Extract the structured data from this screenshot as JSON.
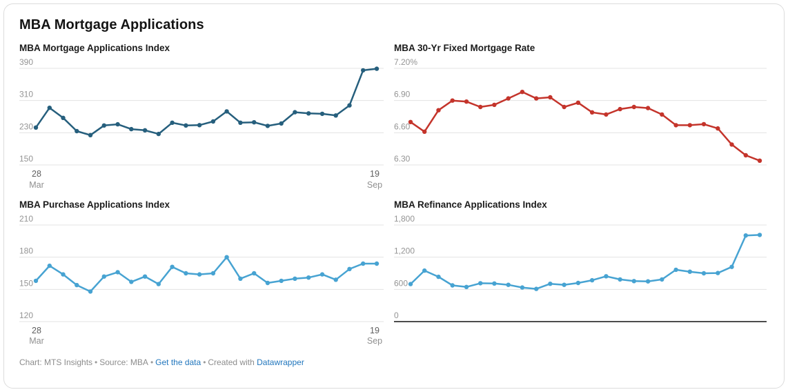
{
  "title": "MBA Mortgage Applications",
  "colors": {
    "dark_blue": "#265f7d",
    "red": "#c4342b",
    "light_blue": "#47a3d2",
    "gridline": "#e3e3e3",
    "dark_axis": "#111111",
    "tick_label": "#949494",
    "footer_text": "#8c8c8c",
    "link": "#2176bd",
    "card_border": "#dcdcdc"
  },
  "footer": {
    "chart_credit": "Chart: MTS Insights",
    "separator": "•",
    "source": "Source: MBA",
    "get_data_link": "Get the data",
    "created_with": "Created with",
    "datawrapper_link": "Datawrapper"
  },
  "chart_data": [
    {
      "type": "line",
      "title": "MBA Mortgage Applications Index",
      "color": "#265f7d",
      "ylim": [
        150,
        390
      ],
      "yticks": [
        {
          "value": 390,
          "label": "390"
        },
        {
          "value": 310,
          "label": "310"
        },
        {
          "value": 230,
          "label": "230"
        },
        {
          "value": 150,
          "label": "150"
        }
      ],
      "dark_baseline": false,
      "x_axis": {
        "visible": true,
        "start_day": "28",
        "start_month": "Mar",
        "end_day": "19",
        "end_month": "Sep"
      },
      "values": [
        243,
        292,
        267,
        234,
        224,
        248,
        251,
        239,
        236,
        227,
        255,
        248,
        249,
        258,
        283,
        255,
        256,
        247,
        253,
        281,
        278,
        277,
        273,
        298,
        385,
        389
      ]
    },
    {
      "type": "line",
      "title": "MBA 30-Yr Fixed Mortgage Rate",
      "color": "#c4342b",
      "ylim": [
        6.3,
        7.2
      ],
      "yticks": [
        {
          "value": 7.2,
          "label": "7.20%"
        },
        {
          "value": 6.9,
          "label": "6.90"
        },
        {
          "value": 6.6,
          "label": "6.60"
        },
        {
          "value": 6.3,
          "label": "6.30"
        }
      ],
      "dark_baseline": false,
      "x_axis": {
        "visible": false,
        "start_day": "",
        "start_month": "",
        "end_day": "",
        "end_month": ""
      },
      "values": [
        6.7,
        6.61,
        6.81,
        6.9,
        6.89,
        6.84,
        6.86,
        6.92,
        6.98,
        6.92,
        6.93,
        6.84,
        6.88,
        6.79,
        6.77,
        6.82,
        6.84,
        6.83,
        6.77,
        6.67,
        6.67,
        6.68,
        6.64,
        6.49,
        6.39,
        6.34
      ]
    },
    {
      "type": "line",
      "title": "MBA Purchase Applications Index",
      "color": "#47a3d2",
      "ylim": [
        120,
        210
      ],
      "yticks": [
        {
          "value": 210,
          "label": "210"
        },
        {
          "value": 180,
          "label": "180"
        },
        {
          "value": 150,
          "label": "150"
        },
        {
          "value": 120,
          "label": "120"
        }
      ],
      "dark_baseline": false,
      "x_axis": {
        "visible": true,
        "start_day": "28",
        "start_month": "Mar",
        "end_day": "19",
        "end_month": "Sep"
      },
      "values": [
        158,
        172,
        164,
        154,
        148,
        162,
        166,
        157,
        162,
        155,
        171,
        165,
        164,
        165,
        180,
        160,
        165,
        156,
        158,
        160,
        161,
        164,
        159,
        169,
        174,
        174
      ]
    },
    {
      "type": "line",
      "title": "MBA Refinance Applications Index",
      "color": "#47a3d2",
      "ylim": [
        0,
        1800
      ],
      "yticks": [
        {
          "value": 1800,
          "label": "1,800"
        },
        {
          "value": 1200,
          "label": "1,200"
        },
        {
          "value": 600,
          "label": "600"
        },
        {
          "value": 0,
          "label": "0"
        }
      ],
      "dark_baseline": true,
      "x_axis": {
        "visible": false,
        "start_day": "",
        "start_month": "",
        "end_day": "",
        "end_month": ""
      },
      "values": [
        700,
        950,
        835,
        675,
        645,
        715,
        710,
        685,
        635,
        610,
        705,
        685,
        720,
        770,
        845,
        785,
        755,
        750,
        785,
        965,
        930,
        900,
        905,
        1020,
        1605,
        1615
      ]
    }
  ]
}
